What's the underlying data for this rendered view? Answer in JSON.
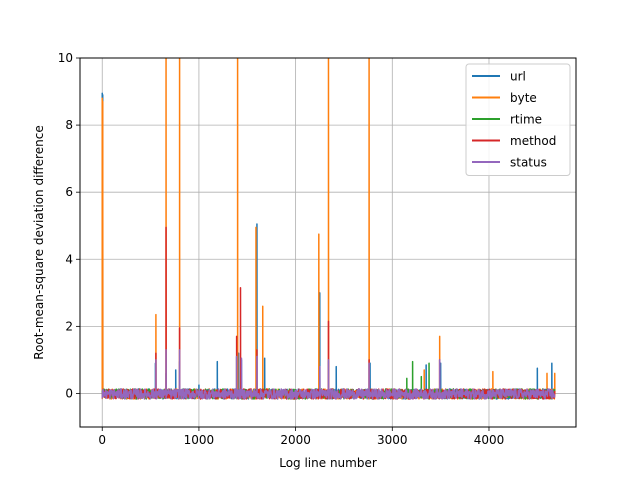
{
  "chart_data": {
    "type": "line",
    "title": "",
    "xlabel": "Log line number",
    "ylabel": "Root-mean-square deviation difference",
    "xlim": [
      -230,
      4900
    ],
    "ylim": [
      -1,
      10
    ],
    "xticks": [
      0,
      1000,
      2000,
      3000,
      4000
    ],
    "yticks": [
      0,
      2,
      4,
      6,
      8,
      10
    ],
    "grid": true,
    "legend_position": "top-right",
    "baseline_noise": 0.15,
    "n_points": 4680,
    "series": [
      {
        "name": "url",
        "color": "#1f77b4",
        "spikes": [
          [
            0,
            8.95
          ],
          [
            5,
            8.9
          ],
          [
            550,
            0.9
          ],
          [
            660,
            0.6
          ],
          [
            760,
            0.7
          ],
          [
            800,
            0.95
          ],
          [
            1000,
            0.25
          ],
          [
            1190,
            0.95
          ],
          [
            1390,
            1.1
          ],
          [
            1410,
            1.2
          ],
          [
            1440,
            1.0
          ],
          [
            1600,
            5.05
          ],
          [
            1680,
            1.05
          ],
          [
            2250,
            3.0
          ],
          [
            2340,
            0.95
          ],
          [
            2420,
            0.8
          ],
          [
            2770,
            0.9
          ],
          [
            3350,
            0.85
          ],
          [
            3500,
            0.9
          ],
          [
            4500,
            0.75
          ],
          [
            4650,
            0.9
          ]
        ]
      },
      {
        "name": "byte",
        "color": "#ff7f0e",
        "spikes": [
          [
            0,
            8.8
          ],
          [
            5,
            8.7
          ],
          [
            555,
            2.35
          ],
          [
            660,
            10
          ],
          [
            800,
            10
          ],
          [
            1400,
            10
          ],
          [
            1590,
            4.95
          ],
          [
            1660,
            2.6
          ],
          [
            2240,
            4.75
          ],
          [
            2340,
            10
          ],
          [
            2760,
            10
          ],
          [
            3490,
            1.7
          ],
          [
            3330,
            0.7
          ],
          [
            4040,
            0.65
          ],
          [
            4600,
            0.6
          ],
          [
            4680,
            0.6
          ]
        ]
      },
      {
        "name": "rtime",
        "color": "#2ca02c",
        "spikes": [
          [
            3210,
            0.95
          ],
          [
            3300,
            0.5
          ],
          [
            3380,
            0.9
          ],
          [
            3150,
            0.45
          ]
        ]
      },
      {
        "name": "method",
        "color": "#d62728",
        "spikes": [
          [
            555,
            1.2
          ],
          [
            660,
            4.95
          ],
          [
            800,
            1.95
          ],
          [
            1390,
            1.7
          ],
          [
            1430,
            3.15
          ],
          [
            1600,
            1.3
          ],
          [
            2340,
            2.15
          ],
          [
            2760,
            1.0
          ],
          [
            3490,
            1.0
          ]
        ]
      },
      {
        "name": "status",
        "color": "#9467bd",
        "spikes": [
          [
            555,
            1.0
          ],
          [
            660,
            1.3
          ],
          [
            800,
            1.3
          ],
          [
            1390,
            1.1
          ],
          [
            1440,
            1.05
          ],
          [
            1600,
            1.1
          ],
          [
            2250,
            0.8
          ],
          [
            2340,
            1.0
          ],
          [
            2760,
            0.9
          ],
          [
            3490,
            1.0
          ]
        ]
      }
    ]
  }
}
